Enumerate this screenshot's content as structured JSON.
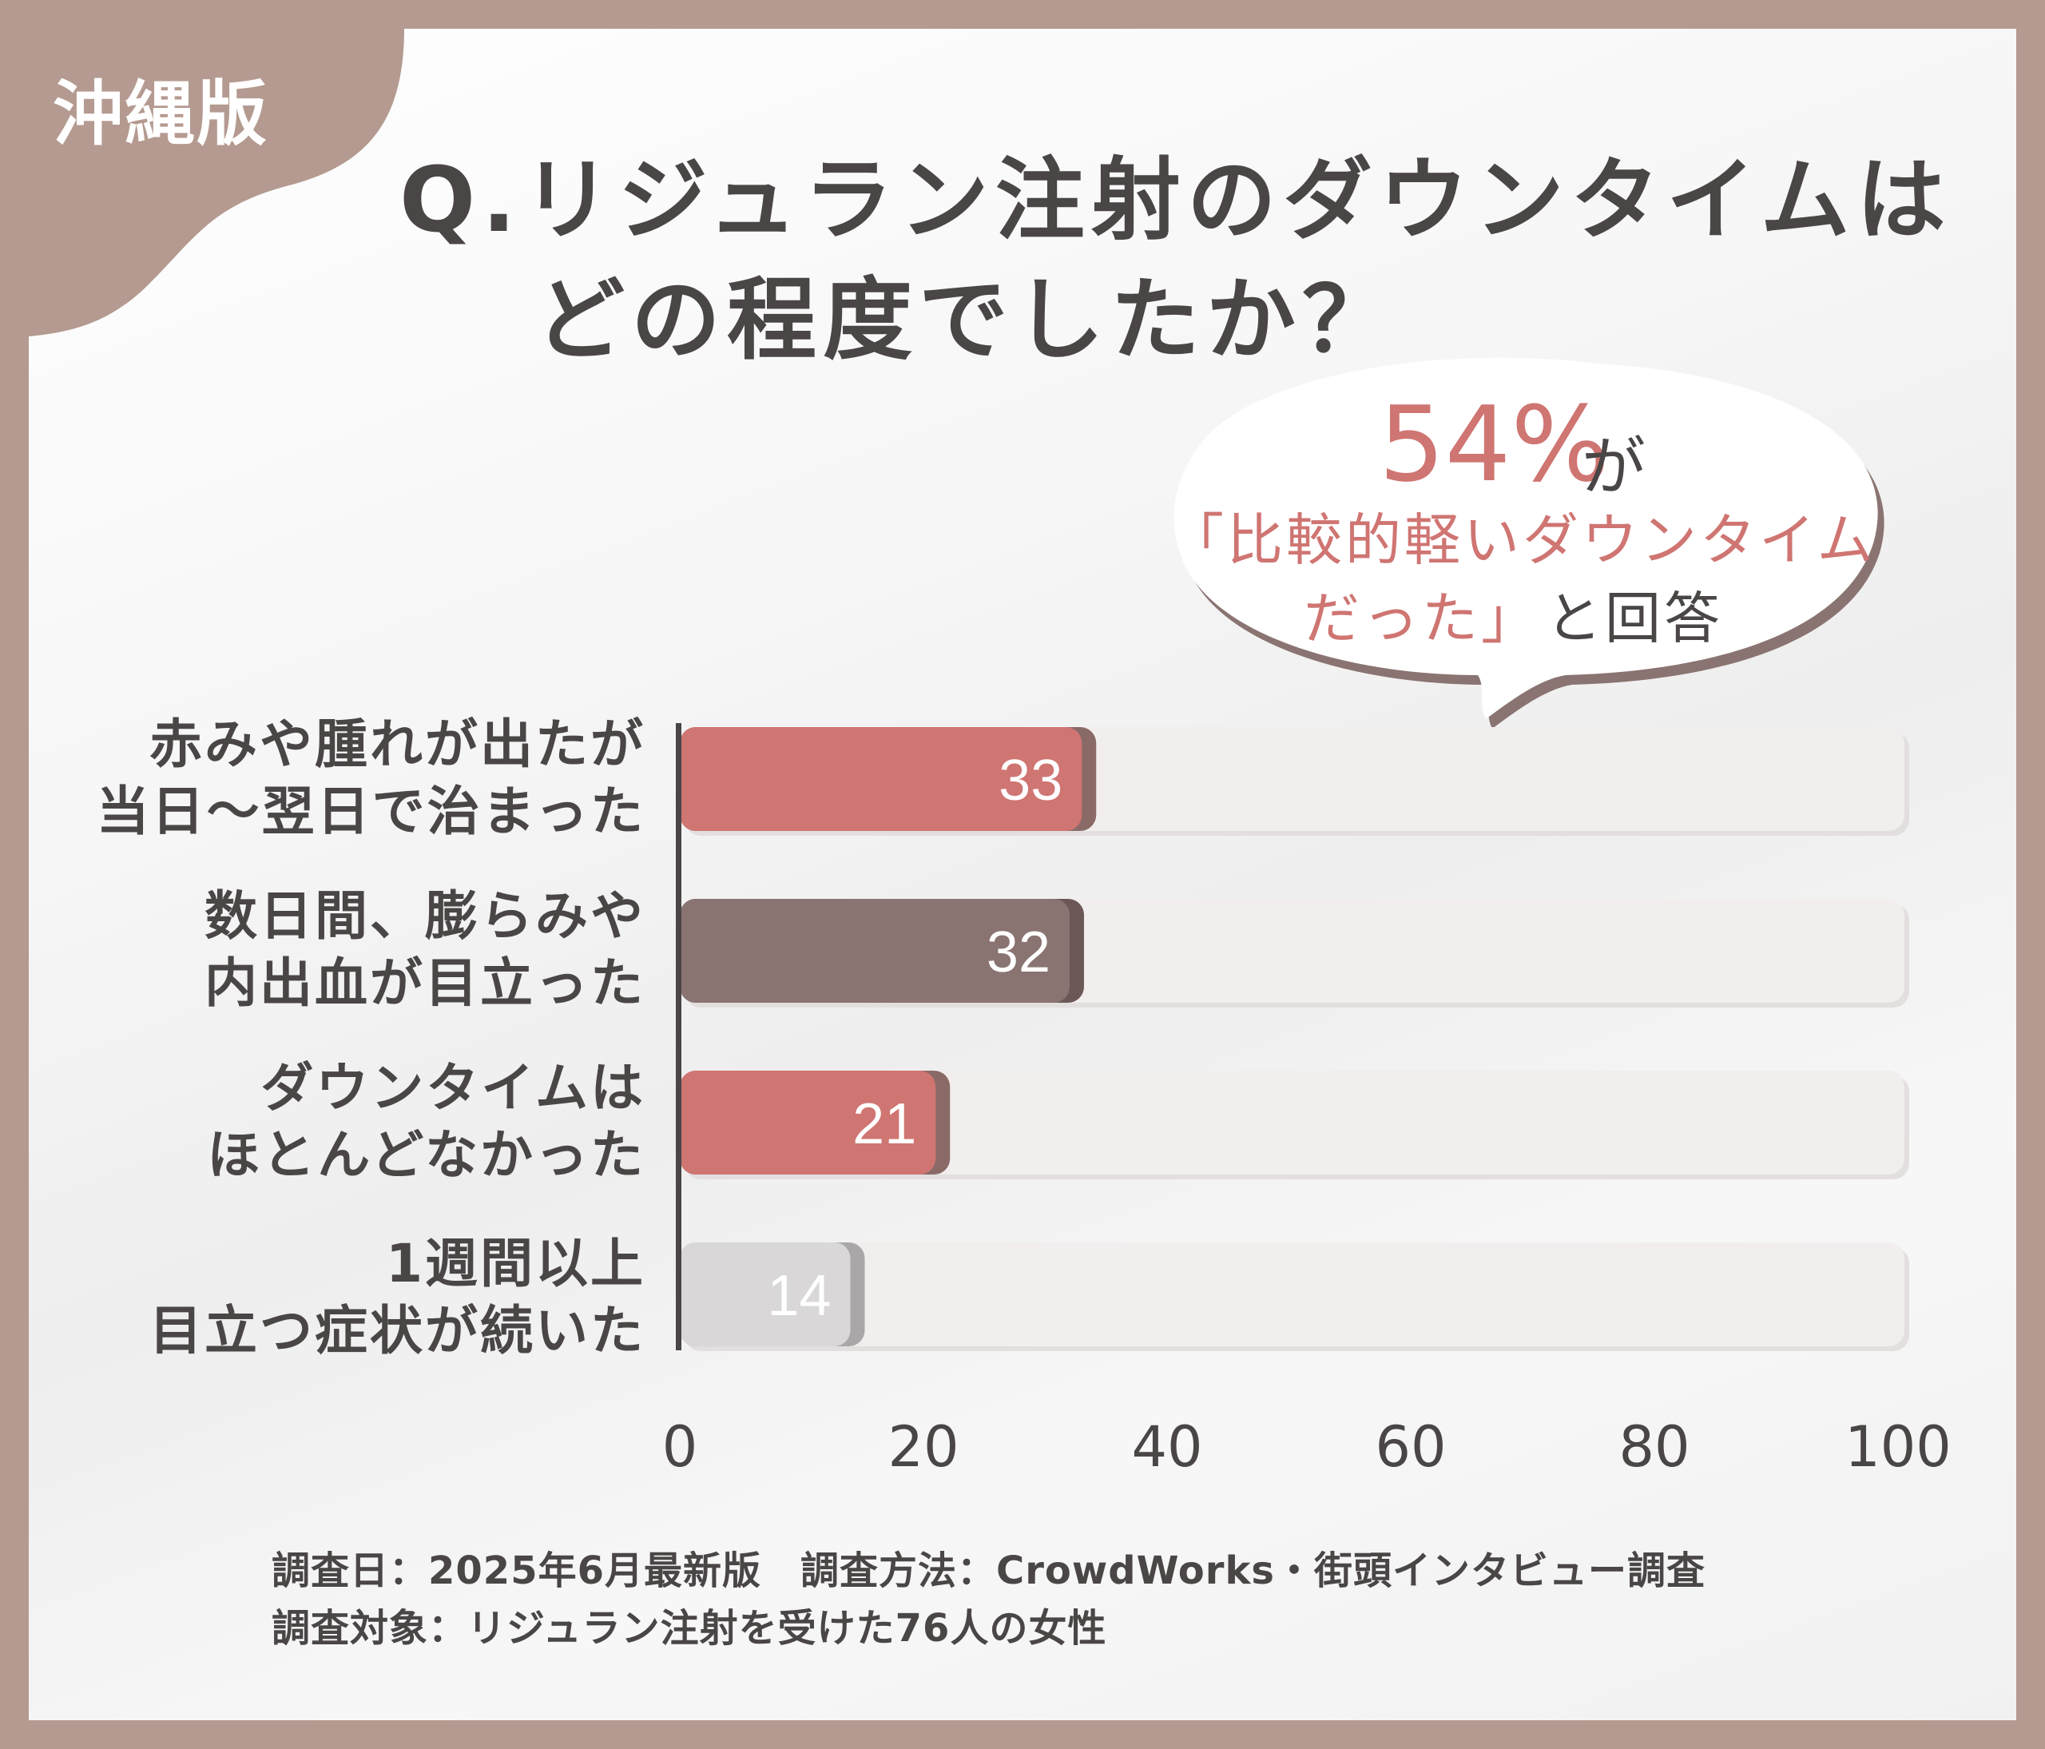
{
  "region_label": "沖縄版",
  "title": {
    "line1": "Q.リジュラン注射のダウンタイムは",
    "line2": "どの程度でしたか？"
  },
  "callout": {
    "percent": "54%",
    "percent_suffix": "が",
    "line2": "「比較的軽いダウンタイム",
    "line3_highlight": "だった」",
    "line3_rest": "と回答"
  },
  "colors": {
    "frame": "#b49a90",
    "accent_pink": "#cf7572",
    "dark_mauve": "#8a7471",
    "light_gray": "#d9d7d7",
    "track": "#f1eeed",
    "text": "#4a4646"
  },
  "chart_data": {
    "type": "bar",
    "orientation": "horizontal",
    "categories": [
      [
        "赤みや腫れが出たが",
        "当日〜翌日で治まった"
      ],
      [
        "数日間、膨らみや",
        "内出血が目立った"
      ],
      [
        "ダウンタイムは",
        "ほとんどなかった"
      ],
      [
        "1週間以上",
        "目立つ症状が続いた"
      ]
    ],
    "values": [
      33,
      32,
      21,
      14
    ],
    "value_labels": [
      "33",
      "32",
      "21",
      "14"
    ],
    "bar_colors": [
      "#cf7572",
      "#8a7471",
      "#cf7572",
      "#d9d7d7"
    ],
    "xlim": [
      0,
      100
    ],
    "xticks": [
      "0",
      "20",
      "40",
      "60",
      "80",
      "100"
    ],
    "grid": false
  },
  "footer": {
    "line1": "調査日：2025年6月最新版　調査方法：CrowdWorks・街頭インタビュー調査",
    "line2": "調査対象：リジュラン注射を受けた76人の女性"
  }
}
